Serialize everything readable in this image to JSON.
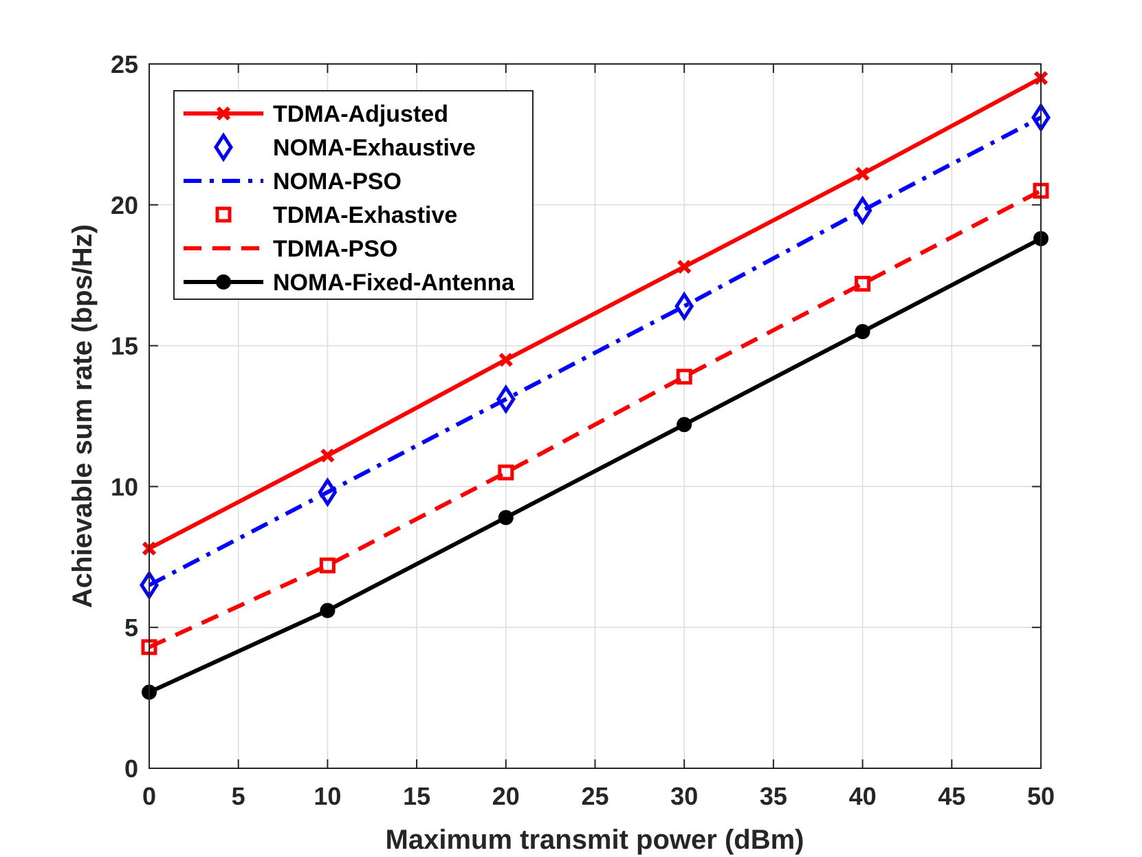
{
  "chart_data": {
    "type": "line",
    "title": "",
    "xlabel": "Maximum transmit power (dBm)",
    "ylabel": "Achievable sum rate (bps/Hz)",
    "xlim": [
      0,
      50
    ],
    "ylim": [
      0,
      25
    ],
    "xticks": [
      0,
      5,
      10,
      15,
      20,
      25,
      30,
      35,
      40,
      45,
      50
    ],
    "yticks": [
      0,
      5,
      10,
      15,
      20,
      25
    ],
    "grid": true,
    "legend_position": "top-left",
    "x": [
      0,
      10,
      20,
      30,
      40,
      50
    ],
    "series": [
      {
        "name": "TDMA-Adjusted",
        "values": [
          7.8,
          11.1,
          14.5,
          17.8,
          21.1,
          24.5
        ],
        "color": "#ff0000",
        "line": "solid",
        "marker": "x"
      },
      {
        "name": "NOMA-Exhaustive",
        "values": [
          6.5,
          9.8,
          13.1,
          16.4,
          19.8,
          23.1
        ],
        "color": "#0000ff",
        "line": "none",
        "marker": "diamond"
      },
      {
        "name": "NOMA-PSO",
        "values": [
          6.5,
          9.8,
          13.1,
          16.4,
          19.8,
          23.1
        ],
        "color": "#0000ff",
        "line": "dashdot",
        "marker": "none"
      },
      {
        "name": "TDMA-Exhastive",
        "values": [
          4.3,
          7.2,
          10.5,
          13.9,
          17.2,
          20.5
        ],
        "color": "#ff0000",
        "line": "none",
        "marker": "square"
      },
      {
        "name": "TDMA-PSO",
        "values": [
          4.3,
          7.2,
          10.5,
          13.9,
          17.2,
          20.5
        ],
        "color": "#ff0000",
        "line": "dashed",
        "marker": "none"
      },
      {
        "name": "NOMA-Fixed-Antenna",
        "values": [
          2.7,
          5.6,
          8.9,
          12.2,
          15.5,
          18.8
        ],
        "color": "#000000",
        "line": "solid",
        "marker": "circle"
      }
    ]
  }
}
